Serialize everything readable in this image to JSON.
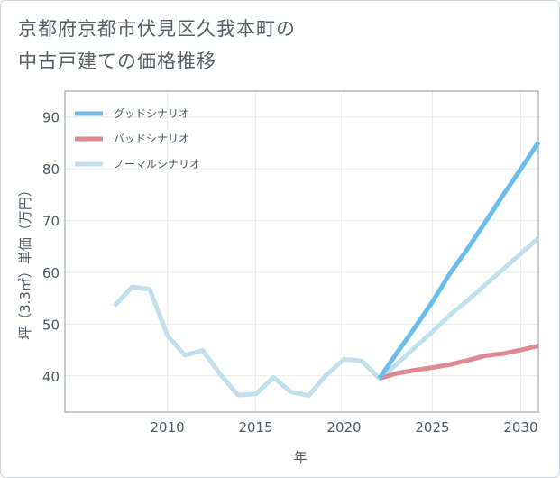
{
  "title_lines": [
    "京都府京都市伏見区久我本町の",
    "中古戸建ての価格推移"
  ],
  "colors": {
    "good": "#6cbcec",
    "bad": "#dd8a95",
    "normal": "#bfe0ec",
    "grid": "#e6ecef",
    "axis": "#8c979e"
  },
  "chart_data": {
    "type": "line",
    "title": "京都府京都市伏見区久我本町の中古戸建ての価格推移",
    "xlabel": "年",
    "ylabel": "坪（3.3㎡）単価（万円）",
    "xlim": [
      2004.2,
      2031
    ],
    "ylim": [
      33,
      95
    ],
    "xticks": [
      2010,
      2015,
      2020,
      2025,
      2030
    ],
    "yticks": [
      40,
      50,
      60,
      70,
      80,
      90
    ],
    "grid": true,
    "legend_position": "top-left",
    "series": [
      {
        "key": "good",
        "name": "グッドシナリオ",
        "x": [
          2022,
          2023,
          2024,
          2025,
          2026,
          2027,
          2028,
          2029,
          2030,
          2031
        ],
        "y": [
          39.5,
          44.5,
          49.3,
          54.3,
          59.8,
          64.6,
          69.7,
          74.9,
          79.9,
          85.1
        ]
      },
      {
        "key": "bad",
        "name": "バッドシナリオ",
        "x": [
          2022,
          2023,
          2024,
          2025,
          2026,
          2027,
          2028,
          2029,
          2030,
          2031
        ],
        "y": [
          39.5,
          40.5,
          41.1,
          41.6,
          42.2,
          43.0,
          43.9,
          44.3,
          45.0,
          45.8
        ]
      },
      {
        "key": "normal",
        "name": "ノーマルシナリオ",
        "x": [
          2007,
          2008,
          2009,
          2010,
          2011,
          2012,
          2013,
          2014,
          2015,
          2016,
          2017,
          2018,
          2019,
          2020,
          2021,
          2022,
          2023,
          2024,
          2025,
          2026,
          2027,
          2028,
          2029,
          2030,
          2031
        ],
        "y": [
          53.5,
          57.2,
          56.7,
          47.8,
          44.0,
          44.9,
          40.3,
          36.3,
          36.5,
          39.7,
          36.9,
          36.2,
          40.2,
          43.2,
          42.9,
          39.5,
          42.3,
          45.5,
          48.5,
          51.8,
          54.6,
          57.6,
          60.6,
          63.6,
          66.6
        ]
      }
    ]
  }
}
